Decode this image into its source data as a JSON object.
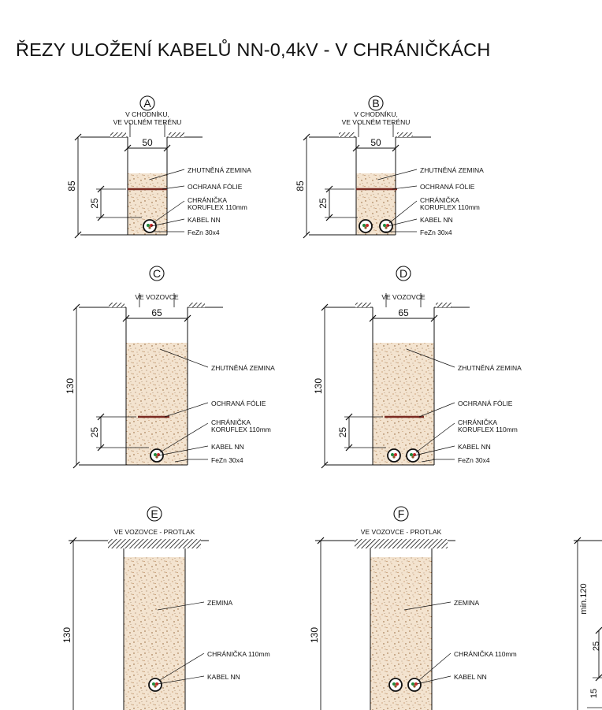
{
  "title": "ŘEZY ULOŽENÍ KABELŮ NN-0,4kV - V CHRÁNIČKÁCH",
  "colors": {
    "soil": "#f3e3cf",
    "foil": "#7a2b22",
    "line": "#111111"
  },
  "sections": [
    {
      "id": "A",
      "caption_lines": [
        "V CHODNÍKU,",
        "VE VOLNÉM TERÉNU"
      ],
      "width_label": "50",
      "depth_label": "85",
      "foil_depth_label": "25",
      "cable_count": 1,
      "labels": [
        "ZHUTNĚNÁ ZEMINA",
        "OCHRANÁ FÓLIE",
        "CHRÁNIČKA",
        "KORUFLEX  110mm",
        "KABEL NN",
        "FeZn 30x4"
      ]
    },
    {
      "id": "B",
      "caption_lines": [
        "V CHODNÍKU,",
        "VE VOLNÉM TERÉNU"
      ],
      "width_label": "50",
      "depth_label": "85",
      "foil_depth_label": "25",
      "cable_count": 2,
      "labels": [
        "ZHUTNĚNÁ ZEMINA",
        "OCHRANÁ FÓLIE",
        "CHRÁNIČKA",
        "KORUFLEX  110mm",
        "KABEL NN",
        "FeZn 30x4"
      ]
    },
    {
      "id": "C",
      "caption_lines": [
        "VE VOZOVCE"
      ],
      "width_label": "65",
      "depth_label": "130",
      "foil_depth_label": "25",
      "cable_count": 1,
      "labels": [
        "ZHUTNĚNÁ ZEMINA",
        "OCHRANÁ FÓLIE",
        "CHRÁNIČKA",
        "KORUFLEX  110mm",
        "KABEL NN",
        "FeZn 30x4"
      ]
    },
    {
      "id": "D",
      "caption_lines": [
        "VE VOZOVCE"
      ],
      "width_label": "65",
      "depth_label": "130",
      "foil_depth_label": "25",
      "cable_count": 2,
      "labels": [
        "ZHUTNĚNÁ ZEMINA",
        "OCHRANÁ FÓLIE",
        "CHRÁNIČKA",
        "KORUFLEX  110mm",
        "KABEL NN",
        "FeZn 30x4"
      ]
    },
    {
      "id": "E",
      "caption_lines": [
        "VE VOZOVCE - PROTLAK"
      ],
      "depth_label": "130",
      "cable_count": 1,
      "labels": [
        "ZEMINA",
        "CHRÁNIČKA 110mm",
        "KABEL NN"
      ]
    },
    {
      "id": "F",
      "caption_lines": [
        "VE VOZOVCE - PROTLAK"
      ],
      "depth_label": "130",
      "cable_count": 2,
      "labels": [
        "ZEMINA",
        "CHRÁNIČKA 110mm",
        "KABEL NN"
      ]
    }
  ],
  "partial_section": {
    "depth_labels": [
      "min.120",
      "25",
      "15"
    ]
  }
}
